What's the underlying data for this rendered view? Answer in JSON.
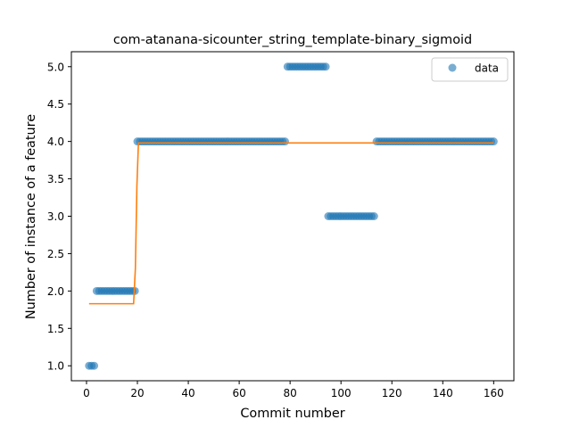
{
  "chart_data": {
    "type": "scatter",
    "title": "com-atanana-sicounter_string_template-binary_sigmoid",
    "xlabel": "Commit number",
    "ylabel": "Number of instance of a feature",
    "xlim": [
      -5.95,
      167.95
    ],
    "ylim": [
      0.8,
      5.2
    ],
    "xticks": [
      0,
      20,
      40,
      60,
      80,
      100,
      120,
      140,
      160
    ],
    "yticks": [
      1.0,
      1.5,
      2.0,
      2.5,
      3.0,
      3.5,
      4.0,
      4.5,
      5.0
    ],
    "grid": false,
    "legend": {
      "position": "top-right",
      "entries": [
        "data"
      ]
    },
    "colors": {
      "data": "#1f77b4",
      "fit": "#ff7f0e"
    },
    "series": [
      {
        "name": "data",
        "kind": "scatter",
        "segments": [
          {
            "x_from": 1,
            "x_to": 3,
            "y": 1
          },
          {
            "x_from": 4,
            "x_to": 19,
            "y": 2
          },
          {
            "x_from": 20,
            "x_to": 78,
            "y": 4
          },
          {
            "x_from": 79,
            "x_to": 94,
            "y": 5
          },
          {
            "x_from": 95,
            "x_to": 113,
            "y": 3
          },
          {
            "x_from": 114,
            "x_to": 160,
            "y": 4
          }
        ]
      },
      {
        "name": "fit",
        "kind": "line",
        "x": [
          1,
          18.5,
          19.2,
          19.8,
          20.4,
          160
        ],
        "y": [
          1.83,
          1.83,
          2.3,
          3.4,
          3.98,
          3.98
        ]
      }
    ]
  }
}
